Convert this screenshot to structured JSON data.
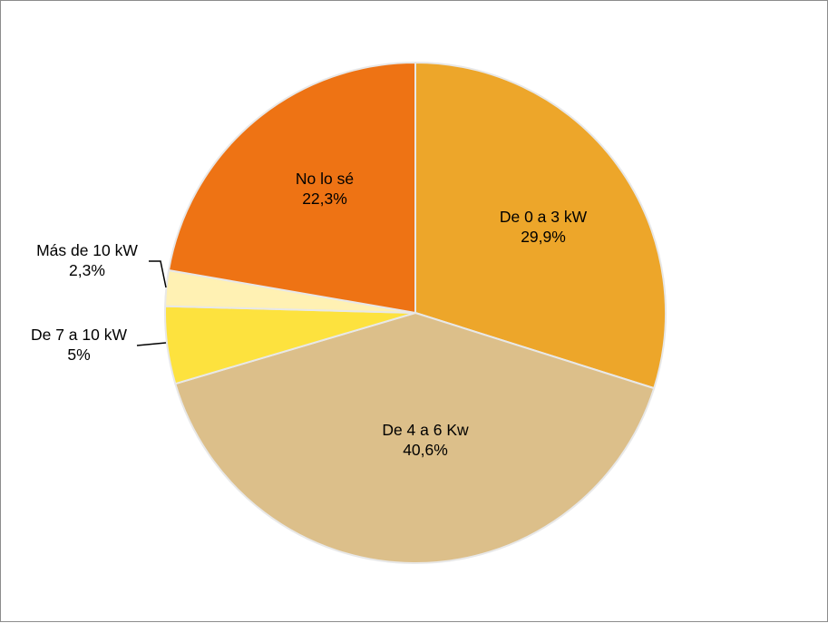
{
  "chart_data": {
    "type": "pie",
    "title": "",
    "start_angle_deg": 0,
    "direction": "clockwise",
    "slice_border_color": "#e8e8e8",
    "slices": [
      {
        "label": "De 0 a 3 kW",
        "value": 29.9,
        "value_label": "29,9%",
        "color": "#eda62a"
      },
      {
        "label": "De 4 a 6 Kw",
        "value": 40.6,
        "value_label": "40,6%",
        "color": "#dcbf8a"
      },
      {
        "label": "De 7 a 10 kW",
        "value": 5.0,
        "value_label": "5%",
        "color": "#fde23e"
      },
      {
        "label": "Más de 10 kW",
        "value": 2.3,
        "value_label": "2,3%",
        "color": "#fff1b3"
      },
      {
        "label": "No lo sé",
        "value": 22.3,
        "value_label": "22,3%",
        "color": "#ee7314"
      }
    ]
  }
}
